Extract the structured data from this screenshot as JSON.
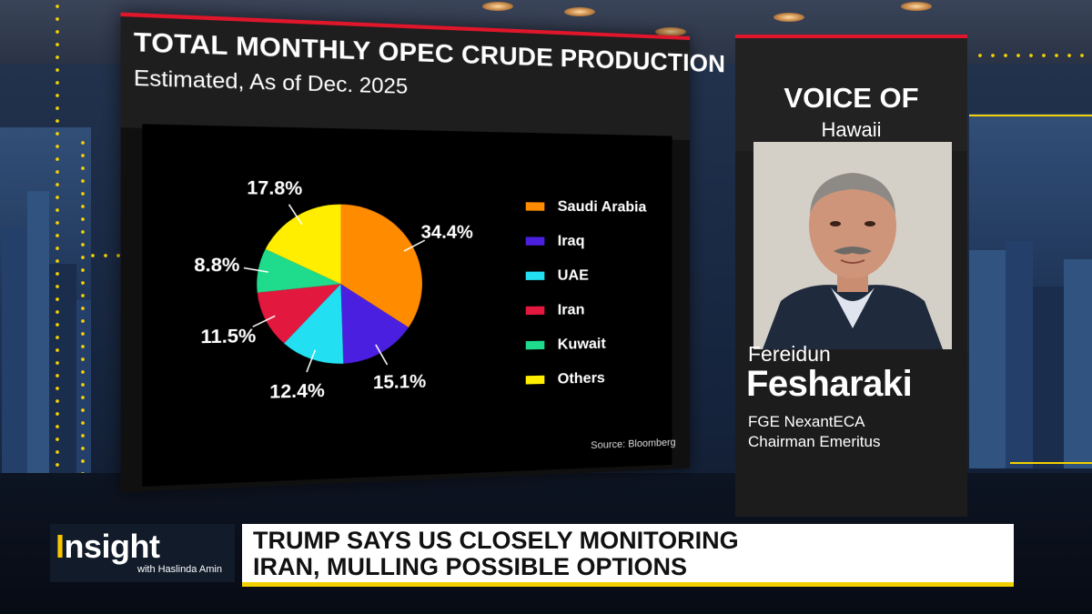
{
  "chart_data": {
    "type": "pie",
    "title": "TOTAL MONTHLY OPEC CRUDE PRODUCTION",
    "subtitle": "Estimated, As of Dec. 2025",
    "categories": [
      "Saudi Arabia",
      "Iraq",
      "UAE",
      "Iran",
      "Kuwait",
      "Others"
    ],
    "values": [
      34.4,
      15.1,
      12.4,
      11.5,
      8.8,
      17.8
    ],
    "value_labels": [
      "34.4%",
      "15.1%",
      "12.4%",
      "11.5%",
      "8.8%",
      "17.8%"
    ],
    "colors": [
      "#ff8c00",
      "#4b1fe0",
      "#22e0f2",
      "#e2183e",
      "#1fdc8c",
      "#ffee00"
    ],
    "legend_position": "right",
    "source": "Source: Bloomberg"
  },
  "guest": {
    "header_title": "VOICE OF",
    "location": "Hawaii",
    "first_name": "Fereidun",
    "last_name": "Fesharaki",
    "title_line1": "FGE NexantECA",
    "title_line2": "Chairman Emeritus"
  },
  "show": {
    "name": "Insight",
    "host": "with Haslinda Amin"
  },
  "headline": {
    "line1": "TRUMP SAYS US CLOSELY MONITORING",
    "line2": "IRAN, MULLING POSSIBLE OPTIONS"
  }
}
